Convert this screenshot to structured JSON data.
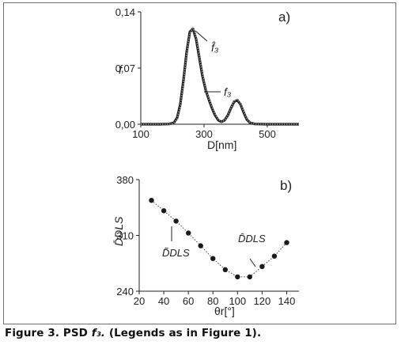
{
  "caption": {
    "prefix": "Figure 3. PSD ",
    "symbol": "f₃.",
    "suffix": " (Legends as in Figure 1)."
  },
  "colors": {
    "curve_dark": "#1a1a1a",
    "curve_light": "#9a9a9a",
    "points": "#1a1a1a",
    "frame": "#6e6e6e"
  },
  "chart_data": [
    {
      "type": "line",
      "panel_label": "a)",
      "xlabel": "D[nm]",
      "ylabel": "f",
      "xlim": [
        100,
        600
      ],
      "ylim": [
        0,
        0.14
      ],
      "xticks": [
        100,
        300,
        500
      ],
      "xtick_labels": [
        "100",
        "300",
        "500"
      ],
      "yticks": [
        0,
        0.07,
        0.14
      ],
      "ytick_labels": [
        "0,00",
        "0,07",
        "0,14"
      ],
      "grid": false,
      "annotations": [
        "f̂₃",
        "f₃"
      ],
      "series": [
        {
          "name": "f̂₃",
          "style": "solid-thick",
          "x": [
            100,
            160,
            190,
            205,
            215,
            225,
            235,
            245,
            255,
            265,
            275,
            285,
            295,
            305,
            315,
            325,
            335,
            345,
            355,
            365,
            375,
            385,
            395,
            405,
            415,
            425,
            435,
            445,
            460,
            500,
            600
          ],
          "values": [
            0,
            0,
            0.0003,
            0.002,
            0.008,
            0.025,
            0.055,
            0.09,
            0.115,
            0.119,
            0.106,
            0.083,
            0.06,
            0.043,
            0.031,
            0.02,
            0.011,
            0.005,
            0.003,
            0.005,
            0.011,
            0.02,
            0.028,
            0.03,
            0.025,
            0.015,
            0.006,
            0.002,
            0.0003,
            0,
            0
          ]
        },
        {
          "name": "f₃",
          "style": "dotted-light",
          "x": [
            100,
            160,
            190,
            205,
            215,
            225,
            235,
            245,
            255,
            265,
            275,
            285,
            295,
            305,
            315,
            325,
            335,
            345,
            355,
            365,
            375,
            385,
            395,
            405,
            415,
            425,
            435,
            445,
            460,
            500,
            600
          ],
          "values": [
            0,
            0,
            0.0002,
            0.0015,
            0.007,
            0.023,
            0.053,
            0.088,
            0.114,
            0.12,
            0.108,
            0.085,
            0.062,
            0.044,
            0.032,
            0.021,
            0.012,
            0.006,
            0.003,
            0.005,
            0.011,
            0.02,
            0.029,
            0.031,
            0.026,
            0.016,
            0.007,
            0.002,
            0.0002,
            0,
            0
          ]
        }
      ]
    },
    {
      "type": "scatter",
      "panel_label": "b)",
      "xlabel": "θr[°]",
      "ylabel": "D̄DLS",
      "xlim": [
        20,
        150
      ],
      "ylim": [
        240,
        380
      ],
      "xticks": [
        20,
        40,
        60,
        80,
        100,
        120,
        140
      ],
      "xtick_labels": [
        "20",
        "40",
        "60",
        "80",
        "100",
        "120",
        "140"
      ],
      "yticks": [
        240,
        310,
        380
      ],
      "ytick_labels": [
        "240",
        "310",
        "380"
      ],
      "grid": false,
      "annotations": [
        "D̃DLS",
        "D̂DLS"
      ],
      "series": [
        {
          "name": "points",
          "x": [
            30,
            40,
            50,
            60,
            70,
            80,
            90,
            100,
            110,
            120,
            130,
            140
          ],
          "values": [
            354,
            341,
            328,
            313,
            297,
            281,
            267,
            258,
            258,
            271,
            284,
            301
          ]
        },
        {
          "name": "fit",
          "style": "dotted",
          "x": [
            30,
            40,
            50,
            60,
            70,
            80,
            90,
            100,
            110,
            120,
            130,
            140
          ],
          "values": [
            354,
            341,
            328,
            313,
            297,
            281,
            267,
            258,
            258,
            271,
            284,
            301
          ]
        }
      ]
    }
  ]
}
